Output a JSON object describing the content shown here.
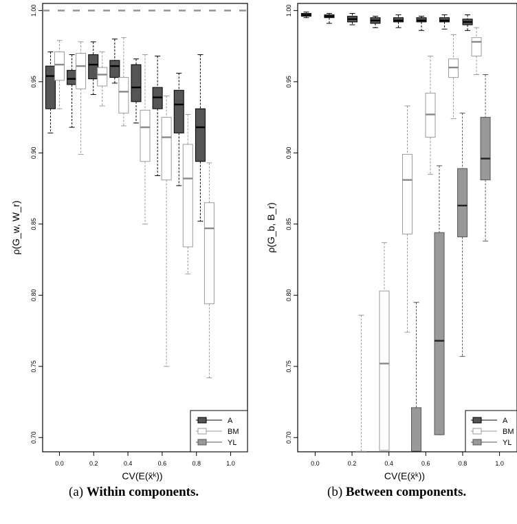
{
  "chart_data": [
    {
      "type": "box",
      "panel_label": "(a)",
      "caption": "Within components.",
      "xlabel": "CV(E(x̄ᵏ))",
      "ylabel": "ρ(G_w, W_r)",
      "xlim": [
        -0.05,
        1.05
      ],
      "ylim": [
        0.69,
        1.005
      ],
      "xticks": [
        0.0,
        0.2,
        0.4,
        0.6,
        0.8,
        1.0
      ],
      "xtick_labels": [
        "0.0",
        "0.2",
        "0.4",
        "0.6",
        "0.8",
        "1.0"
      ],
      "yticks": [
        0.7,
        0.75,
        0.8,
        0.85,
        0.9,
        0.95,
        1.0
      ],
      "ytick_labels": [
        "0.70",
        "0.75",
        "0.80",
        "0.85",
        "0.90",
        "0.95",
        "1.00"
      ],
      "legend_position": "bottom-right",
      "series": [
        {
          "name": "A",
          "color": "#555555",
          "boxes": [
            {
              "x": 0.0,
              "min": 0.914,
              "q1": 0.931,
              "median": 0.954,
              "q3": 0.961,
              "max": 0.971
            },
            {
              "x": 0.125,
              "min": 0.918,
              "q1": 0.948,
              "median": 0.952,
              "q3": 0.958,
              "max": 0.969
            },
            {
              "x": 0.25,
              "min": 0.941,
              "q1": 0.952,
              "median": 0.962,
              "q3": 0.969,
              "max": 0.978
            },
            {
              "x": 0.375,
              "min": 0.949,
              "q1": 0.953,
              "median": 0.961,
              "q3": 0.965,
              "max": 0.98
            },
            {
              "x": 0.5,
              "min": 0.921,
              "q1": 0.936,
              "median": 0.946,
              "q3": 0.962,
              "max": 0.966
            },
            {
              "x": 0.625,
              "min": 0.884,
              "q1": 0.931,
              "median": 0.939,
              "q3": 0.946,
              "max": 0.968
            },
            {
              "x": 0.75,
              "min": 0.877,
              "q1": 0.914,
              "median": 0.934,
              "q3": 0.944,
              "max": 0.956
            },
            {
              "x": 0.875,
              "min": 0.852,
              "q1": 0.894,
              "median": 0.918,
              "q3": 0.931,
              "max": 0.969
            }
          ]
        },
        {
          "name": "BM",
          "color": "#ffffff",
          "boxes": [
            {
              "x": 0.0,
              "min": 0.931,
              "q1": 0.951,
              "median": 0.962,
              "q3": 0.971,
              "max": 0.979
            },
            {
              "x": 0.125,
              "min": 0.899,
              "q1": 0.945,
              "median": 0.961,
              "q3": 0.97,
              "max": 0.978
            },
            {
              "x": 0.25,
              "min": 0.933,
              "q1": 0.947,
              "median": 0.955,
              "q3": 0.96,
              "max": 0.971
            },
            {
              "x": 0.375,
              "min": 0.919,
              "q1": 0.928,
              "median": 0.943,
              "q3": 0.953,
              "max": 0.981
            },
            {
              "x": 0.5,
              "min": 0.85,
              "q1": 0.894,
              "median": 0.918,
              "q3": 0.93,
              "max": 0.969
            },
            {
              "x": 0.625,
              "min": 0.75,
              "q1": 0.881,
              "median": 0.911,
              "q3": 0.925,
              "max": 0.94
            },
            {
              "x": 0.75,
              "min": 0.815,
              "q1": 0.834,
              "median": 0.882,
              "q3": 0.906,
              "max": 0.927
            },
            {
              "x": 0.875,
              "min": 0.742,
              "q1": 0.794,
              "median": 0.847,
              "q3": 0.865,
              "max": 0.893
            }
          ]
        },
        {
          "name": "YL",
          "color": "#999999",
          "reference_line": 1.0
        }
      ]
    },
    {
      "type": "box",
      "panel_label": "(b)",
      "caption": "Between components.",
      "xlabel": "CV(E(x̄ᵏ))",
      "ylabel": "ρ(G_b, B_r)",
      "xlim": [
        -0.05,
        1.05
      ],
      "ylim": [
        0.69,
        1.005
      ],
      "xticks": [
        0.0,
        0.2,
        0.4,
        0.6,
        0.8,
        1.0
      ],
      "xtick_labels": [
        "0.0",
        "0.2",
        "0.4",
        "0.6",
        "0.8",
        "1.0"
      ],
      "yticks": [
        0.7,
        0.75,
        0.8,
        0.85,
        0.9,
        0.95,
        1.0
      ],
      "ytick_labels": [
        "0.70",
        "0.75",
        "0.80",
        "0.85",
        "0.90",
        "0.95",
        "1.00"
      ],
      "legend_position": "bottom-right",
      "series": [
        {
          "name": "A",
          "color": "#555555",
          "boxes": [
            {
              "x": 0.0,
              "min": 0.995,
              "q1": 0.996,
              "median": 0.997,
              "q3": 0.998,
              "max": 0.999
            },
            {
              "x": 0.125,
              "min": 0.991,
              "q1": 0.995,
              "median": 0.996,
              "q3": 0.997,
              "max": 0.998
            },
            {
              "x": 0.25,
              "min": 0.99,
              "q1": 0.992,
              "median": 0.994,
              "q3": 0.996,
              "max": 0.998
            },
            {
              "x": 0.375,
              "min": 0.988,
              "q1": 0.991,
              "median": 0.993,
              "q3": 0.995,
              "max": 0.996
            },
            {
              "x": 0.5,
              "min": 0.988,
              "q1": 0.992,
              "median": 0.993,
              "q3": 0.995,
              "max": 0.997
            },
            {
              "x": 0.625,
              "min": 0.986,
              "q1": 0.992,
              "median": 0.993,
              "q3": 0.995,
              "max": 0.996
            },
            {
              "x": 0.75,
              "min": 0.987,
              "q1": 0.992,
              "median": 0.993,
              "q3": 0.995,
              "max": 0.997
            },
            {
              "x": 0.875,
              "min": 0.986,
              "q1": 0.99,
              "median": 0.992,
              "q3": 0.994,
              "max": 0.997
            }
          ]
        },
        {
          "name": "BM",
          "color": "#ffffff",
          "boxes": [
            {
              "x": 0.25,
              "min": 0.68,
              "q1": 0.68,
              "median": 0.68,
              "q3": 0.68,
              "max": 0.786
            },
            {
              "x": 0.375,
              "min": 0.691,
              "q1": 0.691,
              "median": 0.752,
              "q3": 0.803,
              "max": 0.837
            },
            {
              "x": 0.5,
              "min": 0.774,
              "q1": 0.843,
              "median": 0.881,
              "q3": 0.899,
              "max": 0.933
            },
            {
              "x": 0.625,
              "min": 0.885,
              "q1": 0.911,
              "median": 0.927,
              "q3": 0.942,
              "max": 0.968
            },
            {
              "x": 0.75,
              "min": 0.924,
              "q1": 0.953,
              "median": 0.96,
              "q3": 0.966,
              "max": 0.983
            },
            {
              "x": 0.875,
              "min": 0.955,
              "q1": 0.968,
              "median": 0.978,
              "q3": 0.981,
              "max": 0.988
            }
          ]
        },
        {
          "name": "YL",
          "color": "#999999",
          "boxes": [
            {
              "x": 0.5,
              "min": 0.68,
              "q1": 0.68,
              "median": 0.68,
              "q3": 0.721,
              "max": 0.795
            },
            {
              "x": 0.625,
              "min": 0.702,
              "q1": 0.702,
              "median": 0.768,
              "q3": 0.844,
              "max": 0.891
            },
            {
              "x": 0.75,
              "min": 0.757,
              "q1": 0.841,
              "median": 0.863,
              "q3": 0.889,
              "max": 0.928
            },
            {
              "x": 0.875,
              "min": 0.838,
              "q1": 0.881,
              "median": 0.896,
              "q3": 0.925,
              "max": 0.955
            }
          ]
        }
      ]
    }
  ]
}
